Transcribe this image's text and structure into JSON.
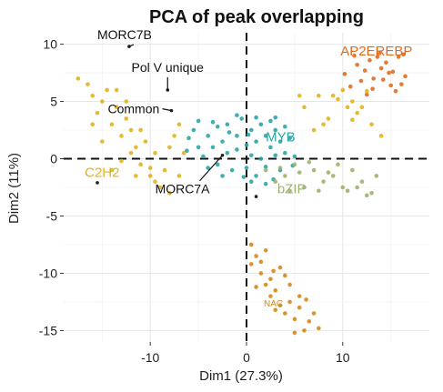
{
  "chart_data": {
    "type": "scatter",
    "title": "PCA of peak overlapping",
    "xlabel": "Dim1 (27.3%)",
    "ylabel": "Dim2 (11%)",
    "xlim": [
      -19,
      19
    ],
    "ylim": [
      -16,
      11
    ],
    "x_ticks": [
      -10,
      0,
      10
    ],
    "y_ticks": [
      10,
      5,
      0,
      -5,
      -10,
      -15
    ],
    "grid": true,
    "reference_lines": {
      "x": 0,
      "y": 0,
      "style": "dashed"
    },
    "colors": {
      "AP2EREBP": "#e06b1f",
      "MYB": "#2aa5a5",
      "C2H2": "#e0b21e",
      "bZIP": "#9cb36e",
      "NAC": "#d4881a",
      "markers": "#1f1f1f"
    },
    "series": [
      {
        "name": "AP2EREBP",
        "points": [
          [
            10.2,
            7.4
          ],
          [
            11.5,
            8.2
          ],
          [
            12.3,
            7.7
          ],
          [
            12.8,
            8.6
          ],
          [
            13.2,
            7.0
          ],
          [
            13.6,
            8.9
          ],
          [
            14.0,
            7.9
          ],
          [
            14.5,
            8.4
          ],
          [
            15.2,
            7.6
          ],
          [
            15.8,
            8.9
          ],
          [
            16.1,
            6.5
          ],
          [
            16.5,
            7.2
          ],
          [
            10.8,
            6.3
          ],
          [
            11.9,
            6.8
          ],
          [
            13.1,
            6.1
          ],
          [
            14.2,
            6.9
          ],
          [
            15.0,
            6.4
          ],
          [
            12.5,
            5.6
          ],
          [
            16.3,
            9.1
          ],
          [
            15.5,
            5.9
          ],
          [
            11.2,
            9.0
          ],
          [
            13.8,
            9.2
          ],
          [
            14.8,
            7.5
          ]
        ]
      },
      {
        "name": "MYB",
        "points": [
          [
            -5.5,
            2.5
          ],
          [
            -5,
            1
          ],
          [
            -4.5,
            0.2
          ],
          [
            -4,
            2
          ],
          [
            -3.5,
            1
          ],
          [
            -3,
            2.8
          ],
          [
            -3,
            -0.5
          ],
          [
            -2.5,
            1.5
          ],
          [
            -2,
            0.5
          ],
          [
            -2,
            3
          ],
          [
            -1.5,
            -1
          ],
          [
            -1,
            2
          ],
          [
            -1,
            0.8
          ],
          [
            -0.5,
            3.5
          ],
          [
            0,
            1.2
          ],
          [
            0,
            -0.8
          ],
          [
            0.5,
            2.5
          ],
          [
            0.5,
            0.3
          ],
          [
            1,
            1.5
          ],
          [
            1,
            -1.5
          ],
          [
            1.5,
            3
          ],
          [
            1.5,
            0
          ],
          [
            2,
            2
          ],
          [
            2,
            -0.7
          ],
          [
            2.5,
            1
          ],
          [
            2.5,
            3.3
          ],
          [
            3,
            0.3
          ],
          [
            3,
            2.5
          ],
          [
            3.5,
            -1
          ],
          [
            3.5,
            1.5
          ],
          [
            4,
            0.5
          ],
          [
            4,
            2.8
          ],
          [
            4.5,
            1.8
          ],
          [
            5,
            0.2
          ],
          [
            -4,
            -0.8
          ],
          [
            -2.5,
            -1.5
          ],
          [
            0.5,
            -2
          ],
          [
            2,
            -2.2
          ],
          [
            -1,
            3.8
          ],
          [
            1,
            3.6
          ],
          [
            -3.5,
            3.2
          ],
          [
            3,
            3.6
          ],
          [
            -6,
            1.8
          ],
          [
            -6.2,
            0.7
          ],
          [
            -5,
            3.3
          ],
          [
            4.8,
            -0.6
          ],
          [
            -1.8,
            2.3
          ],
          [
            2.8,
            -1.8
          ],
          [
            0.2,
            2.1
          ],
          [
            -0.3,
            -1.6
          ]
        ]
      },
      {
        "name": "C2H2",
        "points": [
          [
            -17.5,
            7
          ],
          [
            -16.5,
            6.5
          ],
          [
            -16,
            5.5
          ],
          [
            -15.5,
            4
          ],
          [
            -15,
            5
          ],
          [
            -14.5,
            6
          ],
          [
            -14,
            3
          ],
          [
            -13.5,
            4.5
          ],
          [
            -13,
            2
          ],
          [
            -12.5,
            3.5
          ],
          [
            -12,
            2.5
          ],
          [
            -11.5,
            1
          ],
          [
            -11,
            -0.5
          ],
          [
            -10.5,
            1.5
          ],
          [
            -10,
            -1.5
          ],
          [
            -9.5,
            0.5
          ],
          [
            -9,
            -2.5
          ],
          [
            -8.5,
            -1
          ],
          [
            -8,
            1
          ],
          [
            -7.5,
            2
          ],
          [
            -7,
            3
          ],
          [
            -14,
            -1
          ],
          [
            -13,
            -0.2
          ],
          [
            -12,
            0.5
          ],
          [
            -11,
            2.5
          ],
          [
            -15,
            1.5
          ],
          [
            -16,
            3
          ],
          [
            -13.5,
            6
          ],
          [
            -12.5,
            5
          ],
          [
            -10,
            -0.8
          ],
          [
            -9.5,
            -2
          ],
          [
            -11.5,
            -1.5
          ],
          [
            -8,
            -3
          ],
          [
            -6.5,
            0.5
          ],
          [
            -7,
            -1.5
          ],
          [
            8,
            3
          ],
          [
            9,
            5.5
          ],
          [
            10,
            6
          ],
          [
            10.5,
            4.5
          ],
          [
            11,
            5
          ],
          [
            11.5,
            4
          ],
          [
            12,
            4.5
          ],
          [
            13,
            3
          ],
          [
            14,
            2
          ],
          [
            8.5,
            3.5
          ],
          [
            7,
            2.5
          ],
          [
            6,
            4.5
          ],
          [
            7.5,
            5.5
          ],
          [
            9.5,
            5.2
          ],
          [
            5.5,
            5.5
          ],
          [
            11,
            3.4
          ],
          [
            12.5,
            5.9
          ]
        ]
      },
      {
        "name": "bZIP",
        "points": [
          [
            2,
            -1
          ],
          [
            3,
            -2
          ],
          [
            4,
            -1.5
          ],
          [
            5,
            -0.5
          ],
          [
            6,
            -2.5
          ],
          [
            7,
            -1
          ],
          [
            8,
            -2
          ],
          [
            9,
            -1.5
          ],
          [
            10,
            -2.5
          ],
          [
            11,
            -1
          ],
          [
            12,
            -2
          ],
          [
            13,
            -3
          ],
          [
            9.5,
            -0.5
          ],
          [
            10.5,
            -2.8
          ],
          [
            6.5,
            -0.3
          ],
          [
            4.5,
            -2.8
          ],
          [
            11.5,
            -2.5
          ],
          [
            7.5,
            -2.8
          ],
          [
            8.5,
            -1.2
          ],
          [
            12.5,
            -3.2
          ],
          [
            5.5,
            -1.2
          ],
          [
            3.5,
            -0.8
          ],
          [
            13.5,
            -1.5
          ]
        ]
      },
      {
        "name": "NAC",
        "points": [
          [
            0.5,
            -7.5
          ],
          [
            1,
            -8.5
          ],
          [
            1.5,
            -10
          ],
          [
            2,
            -11
          ],
          [
            2.5,
            -12
          ],
          [
            3,
            -11.5
          ],
          [
            3.5,
            -12.8
          ],
          [
            4,
            -13.5
          ],
          [
            4.5,
            -12.5
          ],
          [
            5,
            -14
          ],
          [
            5.5,
            -13
          ],
          [
            6,
            -15
          ],
          [
            6.5,
            -14.2
          ],
          [
            7,
            -13.5
          ],
          [
            7.5,
            -14.8
          ],
          [
            3.5,
            -9.5
          ],
          [
            2.5,
            -10.5
          ],
          [
            4.5,
            -11
          ],
          [
            5.5,
            -12
          ],
          [
            1.5,
            -9
          ],
          [
            2,
            -8
          ],
          [
            0.5,
            -9.2
          ],
          [
            1,
            -11.2
          ],
          [
            3,
            -13.2
          ],
          [
            5,
            -15.2
          ],
          [
            4,
            -10.2
          ],
          [
            6.2,
            -12.3
          ],
          [
            2.8,
            -9.8
          ]
        ]
      },
      {
        "name": "markers",
        "points": [
          [
            -12.2,
            9.8
          ],
          [
            -8.2,
            6.0
          ],
          [
            -7.8,
            4.2
          ],
          [
            -15.5,
            -2.1
          ],
          [
            -2.5,
            0.3
          ],
          [
            1.0,
            -3.3
          ]
        ]
      }
    ],
    "annotations": [
      {
        "text": "MORC7B",
        "x": -12.2,
        "y": 9.8
      },
      {
        "text": "Pol V unique",
        "x": -8.2,
        "y": 6.0
      },
      {
        "text": "Common",
        "x": -7.8,
        "y": 4.2
      },
      {
        "text": "MORC7A",
        "x": -2.5,
        "y": 0.3
      }
    ],
    "group_labels": [
      {
        "text": "AP2EREBP",
        "x": 13.5,
        "y": 9.0
      },
      {
        "text": "MYB",
        "x": 2.0,
        "y": 1.5
      },
      {
        "text": "C2H2",
        "x": -15.0,
        "y": -1.6
      },
      {
        "text": "bZIP",
        "x": 3.2,
        "y": -3.0
      },
      {
        "text": "NAC",
        "x": 1.8,
        "y": -12.9
      }
    ]
  }
}
